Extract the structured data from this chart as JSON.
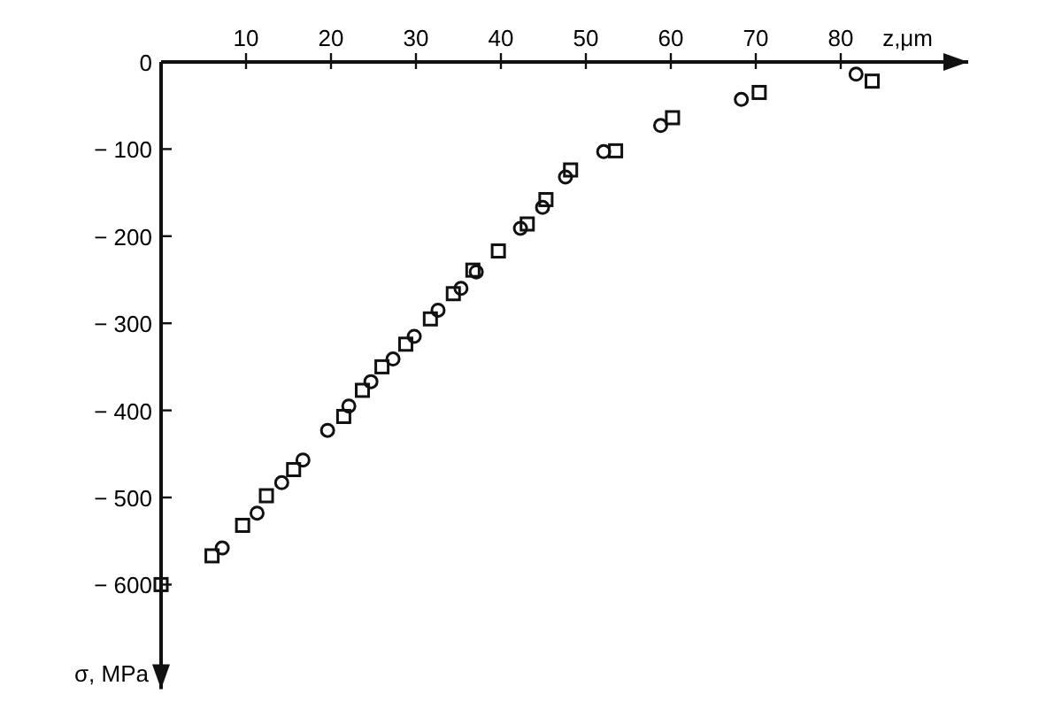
{
  "chart_data": {
    "type": "scatter",
    "xlabel": "z,μm",
    "ylabel": "σ, MPa",
    "xlim": [
      0,
      95
    ],
    "ylim": [
      -720,
      0
    ],
    "xticks": [
      10,
      20,
      30,
      40,
      50,
      60,
      70,
      80
    ],
    "yticks": [
      {
        "value": 0,
        "label": "0"
      },
      {
        "value": -100,
        "label": "− 100"
      },
      {
        "value": -200,
        "label": "− 200"
      },
      {
        "value": -300,
        "label": "− 300"
      },
      {
        "value": -400,
        "label": "− 400"
      },
      {
        "value": -500,
        "label": "− 500"
      },
      {
        "value": -600,
        "label": "− 600"
      }
    ],
    "grid": false,
    "series": [
      {
        "color": "#111111",
        "marker": "square",
        "x": [
          0,
          6.0,
          9.6,
          12.4,
          15.6,
          21.5,
          23.7,
          26.0,
          28.8,
          31.7,
          34.4,
          36.7,
          39.7,
          43.1,
          45.3,
          48.2,
          53.5,
          60.2,
          70.4,
          83.7
        ],
        "values": [
          -600,
          -567,
          -532,
          -498,
          -468,
          -407,
          -377,
          -350,
          -324,
          -295,
          -266,
          -239,
          -217,
          -186,
          -158,
          -124,
          -102,
          -64,
          -35,
          -22
        ]
      },
      {
        "color": "#111111",
        "marker": "circle",
        "x": [
          7.2,
          11.3,
          14.2,
          16.7,
          19.6,
          22.1,
          24.7,
          27.3,
          29.8,
          32.6,
          35.3,
          37.1,
          42.3,
          44.9,
          47.6,
          52.1,
          58.8,
          68.3,
          81.8
        ],
        "values": [
          -558,
          -518,
          -483,
          -457,
          -423,
          -395,
          -367,
          -341,
          -315,
          -285,
          -260,
          -241,
          -191,
          -167,
          -132,
          -103,
          -73,
          -43,
          -14
        ]
      }
    ]
  }
}
